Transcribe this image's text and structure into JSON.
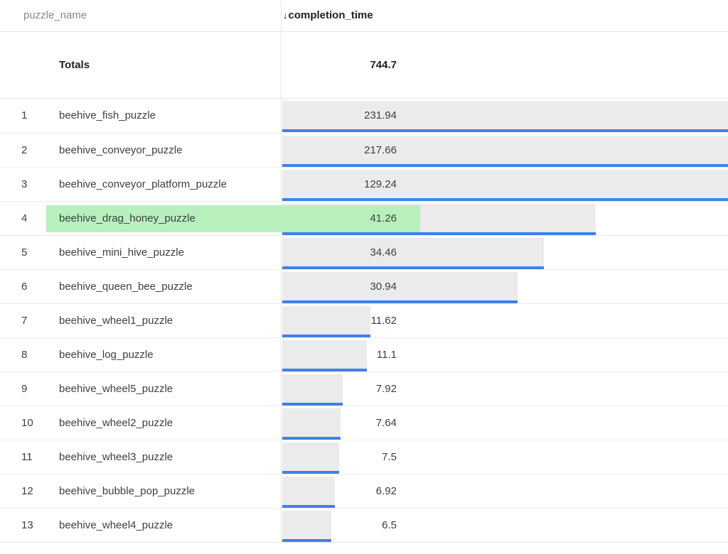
{
  "colors": {
    "bar_gray": "#ebebeb",
    "bar_blue": "#4180e8",
    "highlight_green": "#b7f0bd",
    "separator": "#ededed"
  },
  "table": {
    "columns": [
      {
        "label": "puzzle_name",
        "sorted": false
      },
      {
        "label": "completion_time",
        "sorted": true,
        "sort_icon": "↓",
        "sort_direction": "desc"
      }
    ],
    "totals": {
      "label": "Totals",
      "value": "744.7"
    },
    "rows": [
      {
        "index": "1",
        "name": "beehive_fish_puzzle",
        "value": "231.94",
        "numeric": 231.94,
        "highlighted": false
      },
      {
        "index": "2",
        "name": "beehive_conveyor_puzzle",
        "value": "217.66",
        "numeric": 217.66,
        "highlighted": false
      },
      {
        "index": "3",
        "name": "beehive_conveyor_platform_puzzle",
        "value": "129.24",
        "numeric": 129.24,
        "highlighted": false
      },
      {
        "index": "4",
        "name": "beehive_drag_honey_puzzle",
        "value": "41.26",
        "numeric": 41.26,
        "highlighted": true
      },
      {
        "index": "5",
        "name": "beehive_mini_hive_puzzle",
        "value": "34.46",
        "numeric": 34.46,
        "highlighted": false
      },
      {
        "index": "6",
        "name": "beehive_queen_bee_puzzle",
        "value": "30.94",
        "numeric": 30.94,
        "highlighted": false
      },
      {
        "index": "7",
        "name": "beehive_wheel1_puzzle",
        "value": "11.62",
        "numeric": 11.62,
        "highlighted": false
      },
      {
        "index": "8",
        "name": "beehive_log_puzzle",
        "value": "11.1",
        "numeric": 11.1,
        "highlighted": false
      },
      {
        "index": "9",
        "name": "beehive_wheel5_puzzle",
        "value": "7.92",
        "numeric": 7.92,
        "highlighted": false
      },
      {
        "index": "10",
        "name": "beehive_wheel2_puzzle",
        "value": "7.64",
        "numeric": 7.64,
        "highlighted": false
      },
      {
        "index": "11",
        "name": "beehive_wheel3_puzzle",
        "value": "7.5",
        "numeric": 7.5,
        "highlighted": false
      },
      {
        "index": "12",
        "name": "beehive_bubble_pop_puzzle",
        "value": "6.92",
        "numeric": 6.92,
        "highlighted": false
      },
      {
        "index": "13",
        "name": "beehive_wheel4_puzzle",
        "value": "6.5",
        "numeric": 6.5,
        "highlighted": false
      }
    ]
  },
  "chart_data": {
    "type": "bar",
    "orientation": "horizontal",
    "title": "",
    "xlabel": "completion_time",
    "ylabel": "puzzle_name",
    "categories": [
      "beehive_fish_puzzle",
      "beehive_conveyor_puzzle",
      "beehive_conveyor_platform_puzzle",
      "beehive_drag_honey_puzzle",
      "beehive_mini_hive_puzzle",
      "beehive_queen_bee_puzzle",
      "beehive_wheel1_puzzle",
      "beehive_log_puzzle",
      "beehive_wheel5_puzzle",
      "beehive_wheel2_puzzle",
      "beehive_wheel3_puzzle",
      "beehive_bubble_pop_puzzle",
      "beehive_wheel4_puzzle"
    ],
    "values": [
      231.94,
      217.66,
      129.24,
      41.26,
      34.46,
      30.94,
      11.62,
      11.1,
      7.92,
      7.64,
      7.5,
      6.92,
      6.5
    ],
    "total": 744.7,
    "sort": {
      "column": "completion_time",
      "direction": "desc"
    },
    "highlighted_category": "beehive_drag_honey_puzzle",
    "legend": "none",
    "grid": "off"
  }
}
